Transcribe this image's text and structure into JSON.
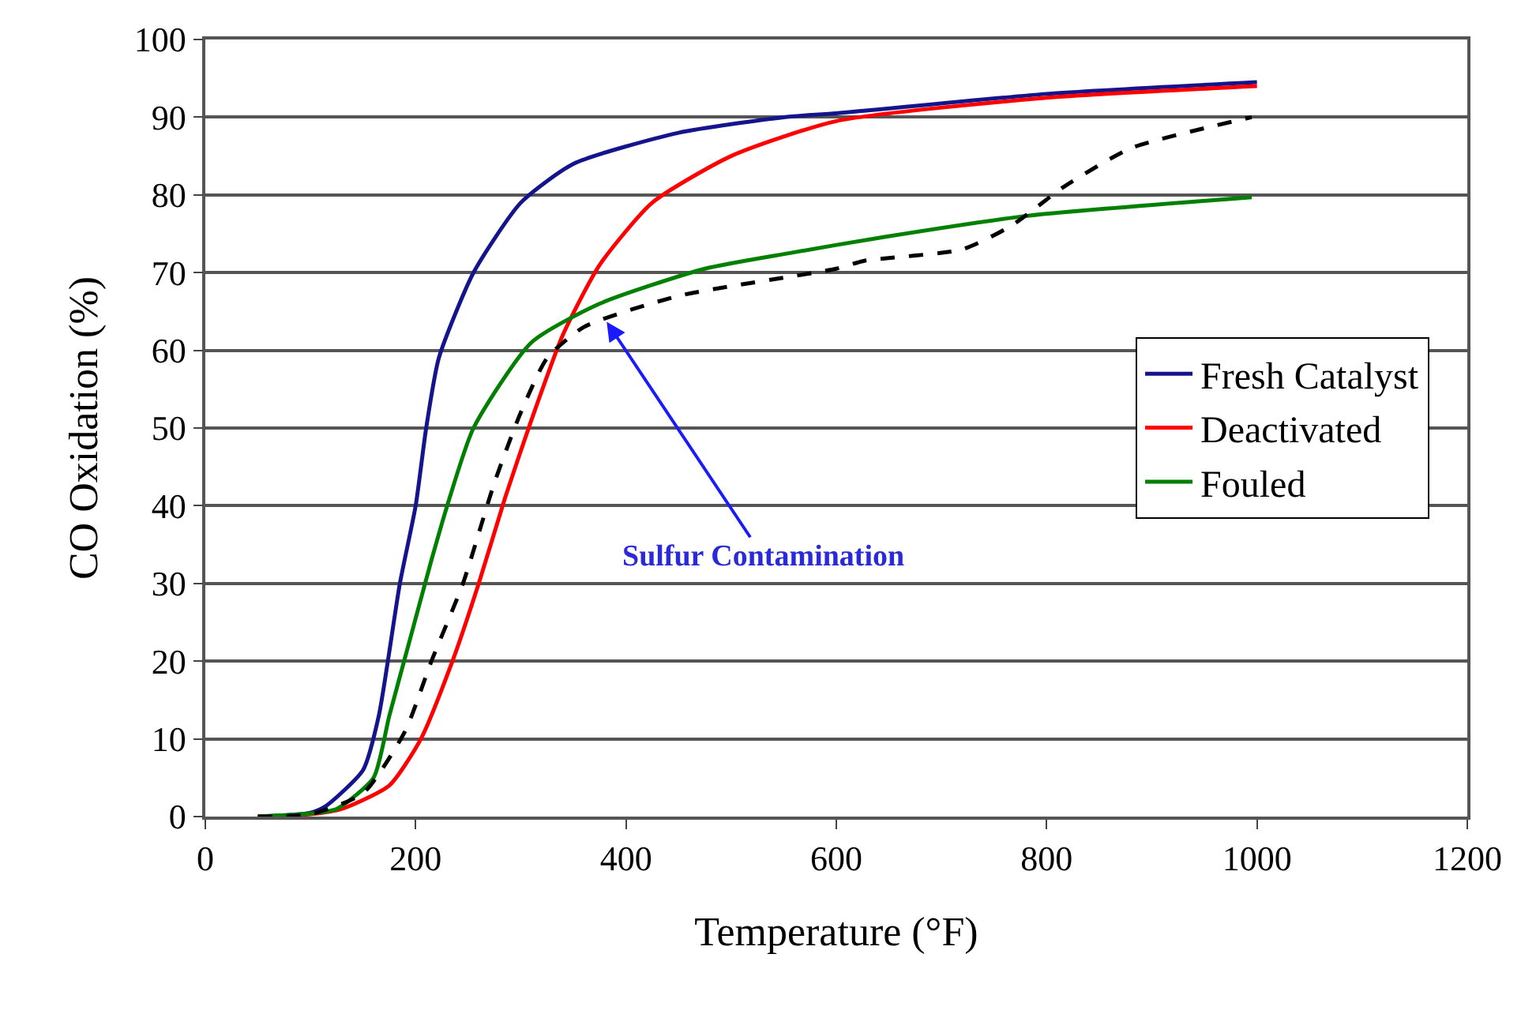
{
  "chart_data": {
    "type": "line",
    "xlabel": "Temperature (°F)",
    "ylabel": "CO Oxidation (%)",
    "xlim": [
      0,
      1200
    ],
    "xticks": [
      0,
      200,
      400,
      600,
      800,
      1000,
      1200
    ],
    "ylim": [
      0,
      100
    ],
    "yticks": [
      0,
      10,
      20,
      30,
      40,
      50,
      60,
      70,
      80,
      90,
      100
    ],
    "grid": "y",
    "legend": "right",
    "marker": "none",
    "annotations": [
      {
        "text": "Sulfur Contamination",
        "x": 380,
        "y": 64
      }
    ],
    "series": [
      {
        "name": "Fresh Catalyst",
        "color": "#14148c",
        "line_style": "solid",
        "x": [
          50,
          100,
          115,
          150,
          165,
          185,
          200,
          210,
          222,
          255,
          300,
          350,
          450,
          550,
          600,
          800,
          1000
        ],
        "values": [
          0,
          0.5,
          1.4,
          6,
          13,
          30,
          40,
          50,
          59,
          70,
          79,
          84,
          88,
          90,
          90.5,
          93,
          94.5
        ]
      },
      {
        "name": "Deactivated",
        "color": "#ff0000",
        "line_style": "solid",
        "x": [
          50,
          100,
          130,
          175,
          205,
          235,
          260,
          285,
          310,
          340,
          375,
          425,
          500,
          600,
          800,
          1000
        ],
        "values": [
          0,
          0.3,
          1,
          4,
          10,
          20,
          30,
          41,
          51,
          62,
          71,
          79,
          85,
          89.5,
          92.5,
          94
        ]
      },
      {
        "name": "Fouled",
        "color": "#008000",
        "line_style": "solid",
        "x": [
          50,
          100,
          125,
          160,
          175,
          195,
          215,
          230,
          255,
          310,
          375,
          475,
          555,
          646,
          781,
          995
        ],
        "values": [
          0,
          0.4,
          1,
          5,
          13,
          23,
          33,
          40,
          50,
          61,
          66,
          70.5,
          72.5,
          74.6,
          77.3,
          79.7
        ]
      },
      {
        "color": "#000000",
        "line_style": "dashed",
        "x": [
          50,
          100,
          150,
          190,
          215,
          245,
          275,
          300,
          325,
          360,
          450,
          600,
          626,
          720,
          766,
          816,
          880,
          995
        ],
        "values": [
          0,
          0.3,
          3,
          11,
          20,
          30,
          43,
          52,
          59,
          63,
          67,
          70.5,
          71.5,
          73,
          76,
          81,
          86,
          90
        ]
      }
    ]
  }
}
